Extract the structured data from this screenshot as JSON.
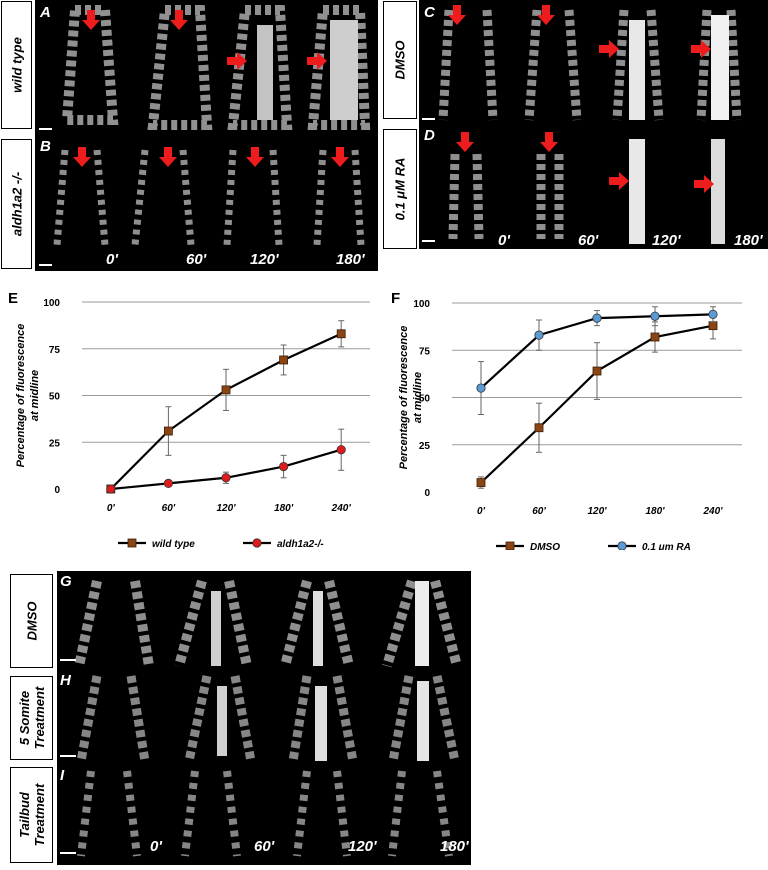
{
  "panel_labels": {
    "A": "A",
    "B": "B",
    "C": "C",
    "D": "D",
    "E": "E",
    "F": "F",
    "G": "G",
    "H": "H",
    "I": "I"
  },
  "row_labels": {
    "wild_type": "wild type",
    "aldh1a2": "aldh1a2 -/-",
    "dmso_top": "DMSO",
    "ra": "0.1 μM RA",
    "dmso_bottom": "DMSO",
    "five_somite_line1": "5 Somite",
    "five_somite_line2": "Treatment",
    "tailbud_line1": "Tailbud",
    "tailbud_line2": "Treatment"
  },
  "time_labels": {
    "t0": "0'",
    "t60": "60'",
    "t120": "120'",
    "t180": "180'"
  },
  "chart_data": [
    {
      "type": "line",
      "panel": "E",
      "ylabel": "Percentage of fluorescence at midline",
      "ylabel_line1": "Percentage of fluorescence",
      "ylabel_line2": "at midline",
      "categories": [
        "0'",
        "60'",
        "120'",
        "180'",
        "240'"
      ],
      "ylim": [
        0,
        100
      ],
      "yticks": [
        0,
        25,
        50,
        75,
        100
      ],
      "grid": true,
      "legend_position": "bottom",
      "series": [
        {
          "name": "wild type",
          "color": "#8b4513",
          "marker": "square",
          "values": [
            0,
            31,
            53,
            69,
            83
          ],
          "errors": [
            0,
            13,
            11,
            8,
            7
          ]
        },
        {
          "name": "aldh1a2-/-",
          "color": "#e01b1b",
          "marker": "circle",
          "values": [
            0,
            3,
            6,
            12,
            21
          ],
          "errors": [
            0,
            0,
            3,
            6,
            11
          ]
        }
      ]
    },
    {
      "type": "line",
      "panel": "F",
      "ylabel": "Percentage of fluorescence at midline",
      "ylabel_line1": "Percentage of fluorescence",
      "ylabel_line2": "at midline",
      "categories": [
        "0'",
        "60'",
        "120'",
        "180'",
        "240'"
      ],
      "ylim": [
        0,
        100
      ],
      "yticks": [
        0,
        25,
        50,
        75,
        100
      ],
      "grid": true,
      "legend_position": "bottom",
      "series": [
        {
          "name": "DMSO",
          "color": "#8b4513",
          "marker": "square",
          "values": [
            5,
            34,
            64,
            82,
            88
          ],
          "errors": [
            3,
            13,
            15,
            8,
            7
          ]
        },
        {
          "name": "0.1 μm RA",
          "color": "#5b9bd5",
          "marker": "circle",
          "values": [
            55,
            83,
            92,
            93,
            94
          ],
          "errors": [
            14,
            8,
            4,
            5,
            4
          ]
        }
      ]
    }
  ]
}
